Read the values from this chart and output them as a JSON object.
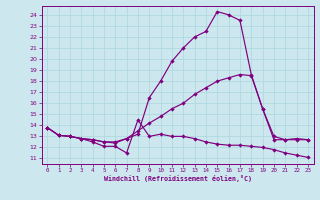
{
  "xlabel": "Windchill (Refroidissement éolien,°C)",
  "bg_color": "#cce8ee",
  "line_color": "#800080",
  "grid_color": "#b0d8e0",
  "xlim": [
    -0.5,
    23.5
  ],
  "ylim": [
    10.5,
    24.8
  ],
  "xticks": [
    0,
    1,
    2,
    3,
    4,
    5,
    6,
    7,
    8,
    9,
    10,
    11,
    12,
    13,
    14,
    15,
    16,
    17,
    18,
    19,
    20,
    21,
    22,
    23
  ],
  "yticks": [
    11,
    12,
    13,
    14,
    15,
    16,
    17,
    18,
    19,
    20,
    21,
    22,
    23,
    24
  ],
  "line1_x": [
    0,
    1,
    2,
    3,
    4,
    5,
    6,
    7,
    8,
    9,
    10,
    11,
    12,
    13,
    14,
    15,
    16,
    17,
    18,
    19,
    20,
    21,
    22,
    23
  ],
  "line1_y": [
    13.8,
    13.1,
    13.0,
    12.8,
    12.5,
    12.1,
    12.1,
    11.5,
    14.5,
    13.0,
    13.2,
    13.0,
    13.0,
    12.8,
    12.5,
    12.3,
    12.2,
    12.2,
    12.1,
    12.0,
    11.8,
    11.5,
    11.3,
    11.1
  ],
  "line2_x": [
    0,
    1,
    2,
    3,
    4,
    5,
    6,
    7,
    8,
    9,
    10,
    11,
    12,
    13,
    14,
    15,
    16,
    17,
    18,
    19,
    20,
    21,
    22,
    23
  ],
  "line2_y": [
    13.8,
    13.1,
    13.0,
    12.8,
    12.7,
    12.5,
    12.4,
    12.8,
    13.2,
    16.5,
    18.0,
    19.8,
    21.0,
    22.0,
    22.5,
    24.3,
    24.0,
    23.5,
    18.6,
    15.5,
    12.7,
    12.7,
    12.8,
    12.7
  ],
  "line3_x": [
    0,
    1,
    2,
    3,
    4,
    5,
    6,
    7,
    8,
    9,
    10,
    11,
    12,
    13,
    14,
    15,
    16,
    17,
    18,
    19,
    20,
    21,
    22,
    23
  ],
  "line3_y": [
    13.8,
    13.1,
    13.0,
    12.8,
    12.7,
    12.5,
    12.5,
    12.8,
    13.5,
    14.2,
    14.8,
    15.5,
    16.0,
    16.8,
    17.4,
    18.0,
    18.3,
    18.6,
    18.5,
    15.5,
    13.0,
    12.7,
    12.7,
    12.7
  ]
}
